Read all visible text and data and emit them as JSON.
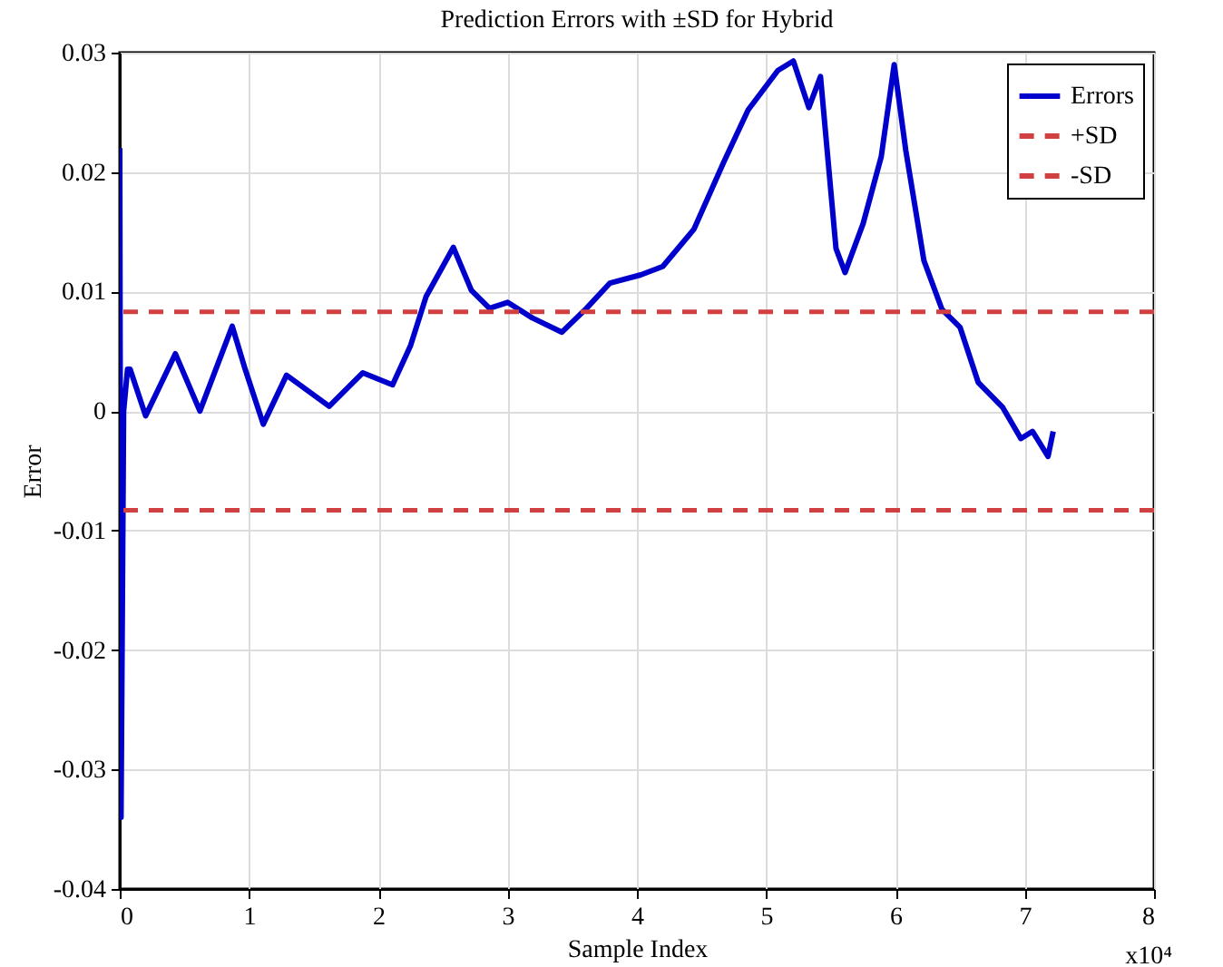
{
  "chart_data": {
    "type": "line",
    "title": "Prediction Errors with ±SD for Hybrid",
    "xlabel": "Sample Index",
    "ylabel": "Error",
    "annotations": [
      "x10⁴"
    ],
    "xlim": [
      0,
      8
    ],
    "xticks": [
      0,
      1,
      2,
      3,
      4,
      5,
      6,
      7,
      8
    ],
    "ylim": [
      -0.04,
      0.03
    ],
    "yticks": [
      -0.04,
      -0.03,
      -0.02,
      -0.01,
      0,
      0.01,
      0.02,
      0.03
    ],
    "grid": true,
    "legend": "top right",
    "line_style": "solid",
    "series": [
      {
        "name": "Errors",
        "color": "#0000cc",
        "x": [
          0,
          0.01,
          0.03,
          0.06,
          0.08,
          0.2,
          0.43,
          0.62,
          0.87,
          0.97,
          1.11,
          1.29,
          1.62,
          1.88,
          2.11,
          2.25,
          2.37,
          2.58,
          2.72,
          2.86,
          3.0,
          3.19,
          3.42,
          3.61,
          3.79,
          4.03,
          4.2,
          4.44,
          4.67,
          4.86,
          5.09,
          5.21,
          5.33,
          5.42,
          5.54,
          5.61,
          5.75,
          5.89,
          5.99,
          6.08,
          6.22,
          6.36,
          6.5,
          6.64,
          6.83,
          6.97,
          7.06,
          7.18,
          7.22
        ],
        "values": [
          0.022,
          -0.034,
          0,
          0.0035,
          0.0035,
          -0.0004,
          0.0048,
          0,
          0.0071,
          0.0035,
          -0.0011,
          0.003,
          0.0004,
          0.0032,
          0.0022,
          0.0055,
          0.0096,
          0.0137,
          0.0101,
          0.0086,
          0.0091,
          0.0078,
          0.0066,
          0.0086,
          0.0107,
          0.0114,
          0.0121,
          0.0152,
          0.0208,
          0.0252,
          0.0285,
          0.0293,
          0.0254,
          0.028,
          0.0136,
          0.0116,
          0.0157,
          0.0213,
          0.029,
          0.0218,
          0.0126,
          0.0085,
          0.007,
          0.0024,
          0.0003,
          -0.0023,
          -0.0017,
          -0.0038,
          -0.0017
        ]
      }
    ],
    "ref_lines": [
      {
        "axis": "y",
        "value": 0.0083,
        "label": "+SD",
        "color": "#d04040",
        "line_style": "dashed"
      },
      {
        "axis": "y",
        "value": -0.0083,
        "label": "-SD",
        "color": "#d04040",
        "line_style": "dashed"
      }
    ]
  }
}
